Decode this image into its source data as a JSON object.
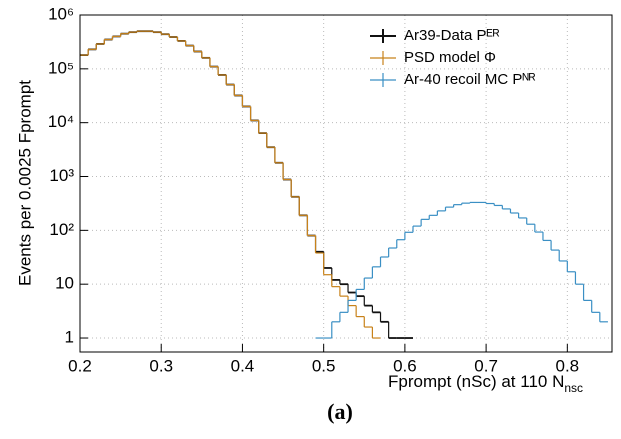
{
  "chart_data": {
    "type": "step-histogram",
    "x_label": {
      "text": "Fprompt (nSc) at 110 N",
      "subscript": "nsc"
    },
    "y_label": "Events per 0.0025 Fprompt",
    "caption": "(a)",
    "log_y": true,
    "grid": true,
    "legend_position": "upper-right",
    "xlim": [
      0.2,
      0.855
    ],
    "ylim": [
      0.55,
      1000000
    ],
    "xticks": [
      0.2,
      0.3,
      0.4,
      0.5,
      0.6,
      0.7,
      0.8
    ],
    "yticks": [
      1,
      10,
      {
        "value": 100,
        "label": "10²"
      },
      {
        "value": 1000,
        "label": "10³"
      },
      {
        "value": 10000,
        "label": "10⁴"
      },
      {
        "value": 100000,
        "label": "10⁵"
      },
      {
        "value": 1000000,
        "label": "10⁶"
      }
    ],
    "bins": [
      0.2,
      0.21,
      0.22,
      0.23,
      0.24,
      0.25,
      0.26,
      0.27,
      0.28,
      0.29,
      0.3,
      0.31,
      0.32,
      0.33,
      0.34,
      0.35,
      0.36,
      0.37,
      0.38,
      0.39,
      0.4,
      0.41,
      0.42,
      0.43,
      0.44,
      0.45,
      0.46,
      0.47,
      0.48,
      0.49,
      0.5,
      0.51,
      0.52,
      0.53,
      0.54,
      0.55,
      0.56,
      0.57,
      0.58,
      0.59,
      0.6,
      0.61,
      0.62,
      0.63,
      0.64,
      0.65,
      0.66,
      0.67,
      0.68,
      0.69,
      0.7,
      0.71,
      0.72,
      0.73,
      0.74,
      0.75,
      0.76,
      0.77,
      0.78,
      0.79,
      0.8,
      0.81,
      0.82,
      0.83,
      0.84,
      0.85
    ],
    "series": [
      {
        "name": "Ar39-Data Pᴱᴿ",
        "color": "#111111",
        "values": [
          180000,
          230000,
          290000,
          350000,
          400000,
          450000,
          480000,
          500000,
          500000,
          480000,
          440000,
          390000,
          330000,
          270000,
          210000,
          160000,
          110000,
          77000,
          51000,
          32000,
          20000,
          11000,
          6400,
          3500,
          1800,
          880,
          420,
          190,
          80,
          40,
          20,
          12,
          10,
          7,
          6,
          4,
          3,
          2,
          1,
          1,
          1,
          null,
          null,
          null,
          null,
          null,
          null,
          null,
          null,
          null,
          null,
          null,
          null,
          null,
          null,
          null,
          null,
          null,
          null,
          null,
          null,
          null,
          null,
          null,
          null
        ]
      },
      {
        "name": "PSD model Φ",
        "color": "#c8821a",
        "values": [
          180000,
          230000,
          290000,
          350000,
          400000,
          450000,
          480000,
          500000,
          500000,
          480000,
          440000,
          390000,
          330000,
          270000,
          210000,
          160000,
          110000,
          77000,
          51000,
          32000,
          20000,
          11000,
          6400,
          3500,
          1800,
          880,
          420,
          190,
          80,
          38,
          15,
          9,
          6,
          4,
          2.5,
          1.6,
          1,
          null,
          null,
          null,
          null,
          null,
          null,
          null,
          null,
          null,
          null,
          null,
          null,
          null,
          null,
          null,
          null,
          null,
          null,
          null,
          null,
          null,
          null,
          null,
          null,
          null,
          null,
          null,
          null
        ]
      },
      {
        "name": "Ar-40 recoil MC Pᴺᴿ",
        "color": "#3a8fc4",
        "values": [
          null,
          null,
          null,
          null,
          null,
          null,
          null,
          null,
          null,
          null,
          null,
          null,
          null,
          null,
          null,
          null,
          null,
          null,
          null,
          null,
          null,
          null,
          null,
          null,
          null,
          null,
          null,
          null,
          null,
          1,
          1,
          2,
          3,
          5,
          8,
          13,
          21,
          32,
          47,
          67,
          92,
          120,
          160,
          190,
          230,
          270,
          300,
          320,
          330,
          330,
          315,
          290,
          250,
          210,
          170,
          130,
          93,
          65,
          43,
          27,
          17,
          10,
          5,
          3,
          2
        ]
      }
    ]
  }
}
